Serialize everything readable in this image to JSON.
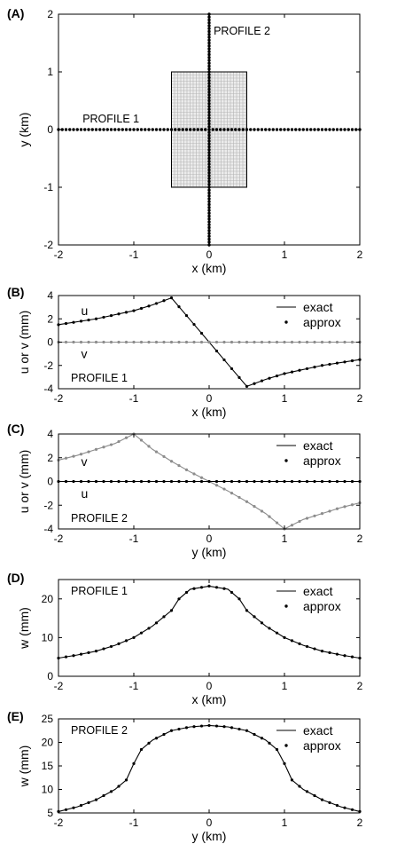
{
  "colors": {
    "ink": "#000000",
    "gray_series": "#8c8c8c",
    "grid_patch": "#b5b5b5"
  },
  "chart_data": [
    {
      "id": "A",
      "type": "scatter",
      "panel_label": "(A)",
      "xlabel": "x (km)",
      "ylabel": "y (km)",
      "xlim": [
        -2,
        2
      ],
      "ylim": [
        -2,
        2
      ],
      "xticks": [
        -2,
        -1,
        0,
        1,
        2
      ],
      "yticks": [
        -2,
        -1,
        0,
        1,
        2
      ],
      "xtick_labels": [
        "-2",
        "-1",
        "0",
        "1",
        "2"
      ],
      "ytick_labels": [
        "-2",
        "-1",
        "0",
        "1",
        "2"
      ],
      "patch": {
        "x": [
          -0.5,
          0.5
        ],
        "y": [
          -1,
          1
        ],
        "fill": "mesh"
      },
      "series": [
        {
          "label": "PROFILE 1",
          "label_pos": {
            "x": -1.68,
            "y": 0.12
          },
          "orientation": "horizontal",
          "from": -2,
          "to": 2,
          "n": 81
        },
        {
          "label": "PROFILE 2",
          "label_pos": {
            "x": 0.06,
            "y": 1.65
          },
          "orientation": "vertical",
          "from": -2,
          "to": 2,
          "n": 81
        }
      ]
    },
    {
      "id": "B",
      "type": "line",
      "panel_label": "(B)",
      "xlabel": "x (km)",
      "ylabel": "u or v (mm)",
      "xlim": [
        -2,
        2
      ],
      "ylim": [
        -4,
        4
      ],
      "xticks": [
        -2,
        -1,
        0,
        1,
        2
      ],
      "yticks": [
        -4,
        -2,
        0,
        2,
        4
      ],
      "xtick_labels": [
        "-2",
        "-1",
        "0",
        "1",
        "2"
      ],
      "ytick_labels": [
        "-4",
        "-2",
        "0",
        "2",
        "4"
      ],
      "annotation": "PROFILE 1",
      "legend": {
        "entries": [
          "exact",
          "approx"
        ],
        "loc": "top-right"
      },
      "series": [
        {
          "name": "u",
          "color": "#000000",
          "name_pos": {
            "x": -1.7,
            "y": 2.7
          },
          "x": [
            -2,
            -1.5,
            -1,
            -0.75,
            -0.5,
            -0.25,
            0,
            0.25,
            0.5,
            0.75,
            1,
            1.5,
            2
          ],
          "y": [
            1.5,
            2.0,
            2.7,
            3.2,
            3.8,
            1.9,
            0,
            -1.9,
            -3.8,
            -3.2,
            -2.7,
            -2.0,
            -1.5
          ]
        },
        {
          "name": "v",
          "color": "#8c8c8c",
          "name_pos": {
            "x": -1.7,
            "y": -1.0
          },
          "x": [
            -2,
            2
          ],
          "y": [
            0,
            0
          ]
        }
      ]
    },
    {
      "id": "C",
      "type": "line",
      "panel_label": "(C)",
      "xlabel": "y (km)",
      "ylabel": "u or v (mm)",
      "xlim": [
        -2,
        2
      ],
      "ylim": [
        -4,
        4
      ],
      "xticks": [
        -2,
        -1,
        0,
        1,
        2
      ],
      "yticks": [
        -4,
        -2,
        0,
        2,
        4
      ],
      "xtick_labels": [
        "-2",
        "-1",
        "0",
        "1",
        "2"
      ],
      "ytick_labels": [
        "-4",
        "-2",
        "0",
        "2",
        "4"
      ],
      "annotation": "PROFILE 2",
      "legend": {
        "entries": [
          "exact",
          "approx"
        ],
        "loc": "top-right"
      },
      "series": [
        {
          "name": "v",
          "color": "#8c8c8c",
          "name_pos": {
            "x": -1.7,
            "y": 1.7
          },
          "x": [
            -2,
            -1.75,
            -1.5,
            -1.25,
            -1,
            -0.75,
            -0.5,
            -0.25,
            0,
            0.25,
            0.5,
            0.75,
            1,
            1.25,
            1.5,
            1.75,
            2
          ],
          "y": [
            1.8,
            2.2,
            2.7,
            3.2,
            4.0,
            2.7,
            1.7,
            0.8,
            0,
            -0.8,
            -1.7,
            -2.7,
            -4.0,
            -3.2,
            -2.7,
            -2.2,
            -1.8
          ]
        },
        {
          "name": "u",
          "color": "#000000",
          "name_pos": {
            "x": -1.7,
            "y": -1.0
          },
          "x": [
            -2,
            2
          ],
          "y": [
            0,
            0
          ]
        }
      ]
    },
    {
      "id": "D",
      "type": "line",
      "panel_label": "(D)",
      "xlabel": "x (km)",
      "ylabel": "w (mm)",
      "xlim": [
        -2,
        2
      ],
      "ylim": [
        0,
        25
      ],
      "xticks": [
        -2,
        -1,
        0,
        1,
        2
      ],
      "yticks": [
        0,
        10,
        20
      ],
      "xtick_labels": [
        "-2",
        "-1",
        "0",
        "1",
        "2"
      ],
      "ytick_labels": [
        "0",
        "10",
        "20"
      ],
      "annotation": "PROFILE 1",
      "legend": {
        "entries": [
          "exact",
          "approx"
        ],
        "loc": "top-right"
      },
      "series": [
        {
          "name": "w",
          "color": "#000000",
          "x": [
            -2,
            -1.75,
            -1.5,
            -1.25,
            -1,
            -0.75,
            -0.5,
            -0.4,
            -0.25,
            0,
            0.25,
            0.4,
            0.5,
            0.75,
            1,
            1.25,
            1.5,
            1.75,
            2
          ],
          "y": [
            4.7,
            5.5,
            6.5,
            8.0,
            10.0,
            13.0,
            17.0,
            20.0,
            22.5,
            23.3,
            22.5,
            20.0,
            17.0,
            13.0,
            10.0,
            8.0,
            6.5,
            5.5,
            4.7
          ]
        }
      ]
    },
    {
      "id": "E",
      "type": "line",
      "panel_label": "(E)",
      "xlabel": "y (km)",
      "ylabel": "w (mm)",
      "xlim": [
        -2,
        2
      ],
      "ylim": [
        5,
        25
      ],
      "xticks": [
        -2,
        -1,
        0,
        1,
        2
      ],
      "yticks": [
        5,
        10,
        15,
        20,
        25
      ],
      "xtick_labels": [
        "-2",
        "-1",
        "0",
        "1",
        "2"
      ],
      "ytick_labels": [
        "5",
        "10",
        "15",
        "20",
        "25"
      ],
      "annotation": "PROFILE 2",
      "legend": {
        "entries": [
          "exact",
          "approx"
        ],
        "loc": "top-right"
      },
      "series": [
        {
          "name": "w",
          "color": "#000000",
          "x": [
            -2,
            -1.75,
            -1.5,
            -1.25,
            -1.1,
            -1,
            -0.9,
            -0.75,
            -0.5,
            -0.25,
            0,
            0.25,
            0.5,
            0.75,
            0.9,
            1,
            1.1,
            1.25,
            1.5,
            1.75,
            2
          ],
          "y": [
            5.3,
            6.3,
            7.8,
            10.0,
            12.0,
            15.5,
            18.5,
            20.5,
            22.5,
            23.3,
            23.6,
            23.3,
            22.5,
            20.5,
            18.5,
            15.5,
            12.0,
            10.0,
            7.8,
            6.3,
            5.3
          ]
        }
      ]
    }
  ]
}
